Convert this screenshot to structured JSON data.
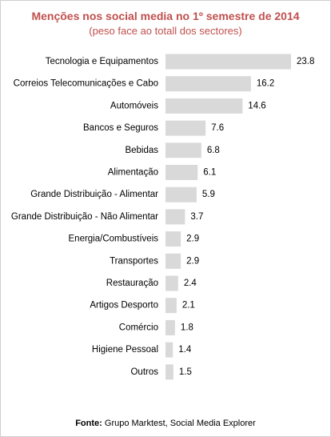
{
  "chart_data": {
    "type": "bar",
    "orientation": "horizontal",
    "title": "Menções nos social media no 1º semestre de 2014",
    "subtitle": "(peso face ao totall dos sectores)",
    "categories": [
      "Tecnologia e Equipamentos",
      "Correios Telecomunicações e Cabo",
      "Automóveis",
      "Bancos e Seguros",
      "Bebidas",
      "Alimentação",
      "Grande Distribuição - Alimentar",
      "Grande Distribuição - Não Alimentar",
      "Energia/Combustíveis",
      "Transportes",
      "Restauração",
      "Artigos Desporto",
      "Comércio",
      "Higiene Pessoal",
      "Outros"
    ],
    "values": [
      23.8,
      16.2,
      14.6,
      7.6,
      6.8,
      6.1,
      5.9,
      3.7,
      2.9,
      2.9,
      2.4,
      2.1,
      1.8,
      1.4,
      1.5
    ],
    "value_labels": [
      "23.8",
      "16.2",
      "14.6",
      "7.6",
      "6.8",
      "6.1",
      "5.9",
      "3.7",
      "2.9",
      "2.9",
      "2.4",
      "2.1",
      "1.8",
      "1.4",
      "1.5"
    ],
    "xlim": [
      0,
      23.8
    ],
    "bar_color": "#d9d9d9",
    "title_color": "#c0504d",
    "grid": false,
    "legend": false
  },
  "source": {
    "label": "Fonte",
    "separator": ":",
    "text": " Grupo Marktest, Social Media Explorer"
  }
}
